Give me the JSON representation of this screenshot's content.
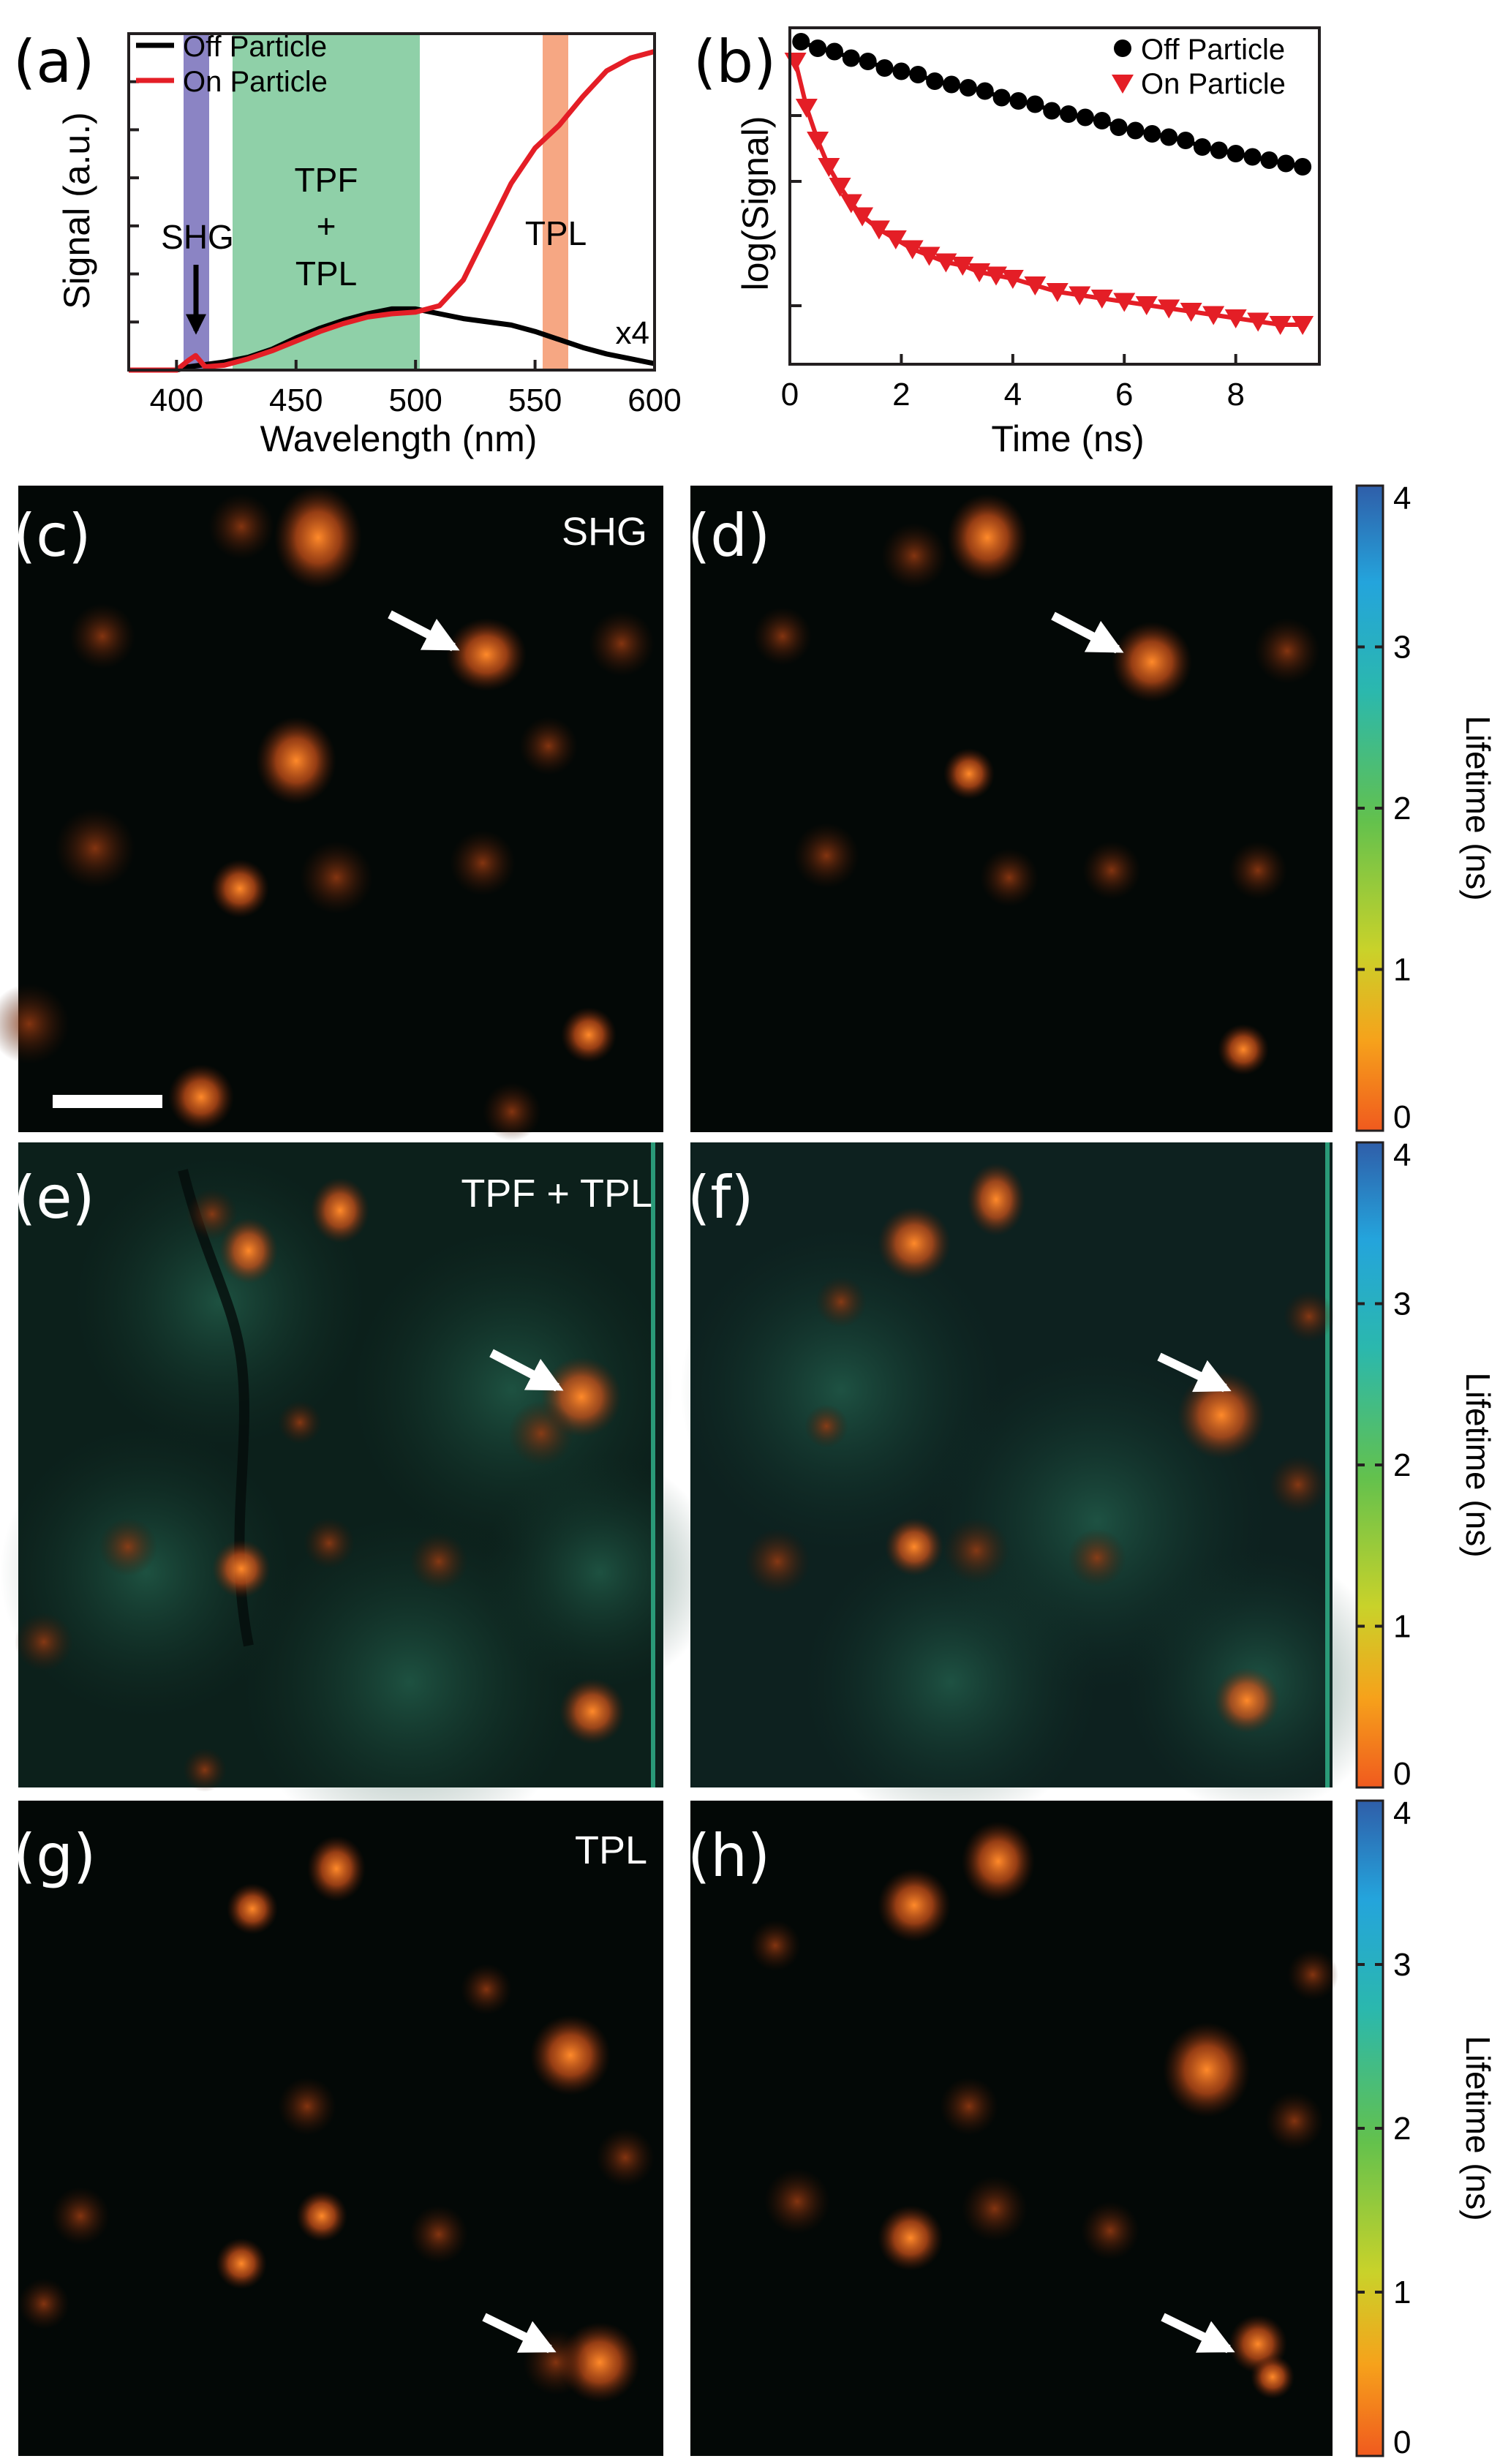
{
  "panel_labels": {
    "a": "(a)",
    "b": "(b)",
    "c": "(c)",
    "d": "(d)",
    "e": "(e)",
    "f": "(f)",
    "g": "(g)",
    "h": "(h)"
  },
  "image_labels": {
    "c": "SHG",
    "e": "TPF + TPL",
    "g": "TPL"
  },
  "colorbar": {
    "label": "Lifetime (ns)",
    "ticks": [
      "0",
      "1",
      "2",
      "3",
      "4"
    ],
    "stops": [
      "#f05a1e",
      "#f6a21b",
      "#c9d22a",
      "#63c14d",
      "#2bb8ad",
      "#24a4dc",
      "#2f5ea9"
    ]
  },
  "colors": {
    "off_particle": "#000000",
    "on_particle": "#e41e26",
    "shg_band": "#8b84c4",
    "tpf_band": "#8fd0a8",
    "tpl_band": "#f6a783"
  },
  "chart_data": [
    {
      "type": "line",
      "ylabel": "Signal (a.u.)",
      "xlabel": "Wavelength (nm)",
      "xlim": [
        380,
        600
      ],
      "xticks": [
        "400",
        "450",
        "500",
        "550",
        "600"
      ],
      "legend": {
        "placement": "top-left",
        "entries": [
          "Off Particle",
          "On Particle"
        ]
      },
      "bands": [
        {
          "label": "SHG",
          "x": [
            405,
            413
          ]
        },
        {
          "label": "TPF + TPL",
          "x": [
            422,
            500
          ]
        },
        {
          "label": "TPL",
          "x": [
            553,
            563
          ]
        }
      ],
      "annotations": {
        "shg": "SHG",
        "tpf": "TPF",
        "plus": "+",
        "tpl_stack": "TPL",
        "tpl": "TPL",
        "scale": "x4"
      },
      "series": [
        {
          "name": "Off Particle",
          "x": [
            380,
            400,
            405,
            410,
            420,
            430,
            440,
            450,
            460,
            470,
            480,
            490,
            500,
            510,
            520,
            530,
            540,
            550,
            560,
            570,
            580,
            590,
            600
          ],
          "y": [
            0.0,
            0.0,
            0.01,
            0.015,
            0.025,
            0.04,
            0.065,
            0.1,
            0.13,
            0.155,
            0.175,
            0.19,
            0.19,
            0.175,
            0.16,
            0.15,
            0.14,
            0.12,
            0.095,
            0.07,
            0.05,
            0.035,
            0.02
          ]
        },
        {
          "name": "On Particle",
          "x": [
            380,
            400,
            405,
            408,
            412,
            420,
            430,
            440,
            450,
            460,
            470,
            480,
            490,
            500,
            510,
            520,
            530,
            540,
            550,
            560,
            570,
            580,
            590,
            600
          ],
          "y": [
            0.0,
            0.0,
            0.03,
            0.045,
            0.01,
            0.015,
            0.035,
            0.06,
            0.09,
            0.12,
            0.145,
            0.165,
            0.175,
            0.18,
            0.2,
            0.28,
            0.43,
            0.58,
            0.69,
            0.76,
            0.85,
            0.93,
            0.97,
            0.99
          ]
        }
      ]
    },
    {
      "type": "scatter",
      "ylabel": "log(Signal)",
      "xlabel": "Time (ns)",
      "xlim": [
        0,
        9.5
      ],
      "xticks": [
        "0",
        "2",
        "4",
        "6",
        "8"
      ],
      "legend": {
        "placement": "top-right",
        "entries": [
          "Off Particle",
          "On Particle"
        ]
      },
      "series": [
        {
          "name": "Off Particle",
          "marker": "circle",
          "x": [
            0.2,
            0.5,
            0.8,
            1.1,
            1.4,
            1.7,
            2.0,
            2.3,
            2.6,
            2.9,
            3.2,
            3.5,
            3.8,
            4.1,
            4.4,
            4.7,
            5.0,
            5.3,
            5.6,
            5.9,
            6.2,
            6.5,
            6.8,
            7.1,
            7.4,
            7.7,
            8.0,
            8.3,
            8.6,
            8.9,
            9.2
          ],
          "y": [
            0.98,
            0.96,
            0.95,
            0.93,
            0.92,
            0.9,
            0.89,
            0.88,
            0.86,
            0.85,
            0.84,
            0.83,
            0.81,
            0.8,
            0.79,
            0.77,
            0.76,
            0.75,
            0.74,
            0.72,
            0.71,
            0.7,
            0.69,
            0.68,
            0.66,
            0.65,
            0.64,
            0.63,
            0.62,
            0.61,
            0.6
          ]
        },
        {
          "name": "On Particle",
          "marker": "triangle-down",
          "x": [
            0.1,
            0.3,
            0.5,
            0.7,
            0.9,
            1.1,
            1.3,
            1.6,
            1.9,
            2.2,
            2.5,
            2.8,
            3.1,
            3.4,
            3.7,
            4.0,
            4.4,
            4.8,
            5.2,
            5.6,
            6.0,
            6.4,
            6.8,
            7.2,
            7.6,
            8.0,
            8.4,
            8.8,
            9.2
          ],
          "y": [
            0.92,
            0.78,
            0.68,
            0.6,
            0.54,
            0.49,
            0.45,
            0.41,
            0.38,
            0.35,
            0.33,
            0.31,
            0.3,
            0.28,
            0.27,
            0.26,
            0.24,
            0.22,
            0.21,
            0.2,
            0.19,
            0.18,
            0.17,
            0.16,
            0.15,
            0.14,
            0.13,
            0.12,
            0.12
          ]
        }
      ]
    }
  ]
}
